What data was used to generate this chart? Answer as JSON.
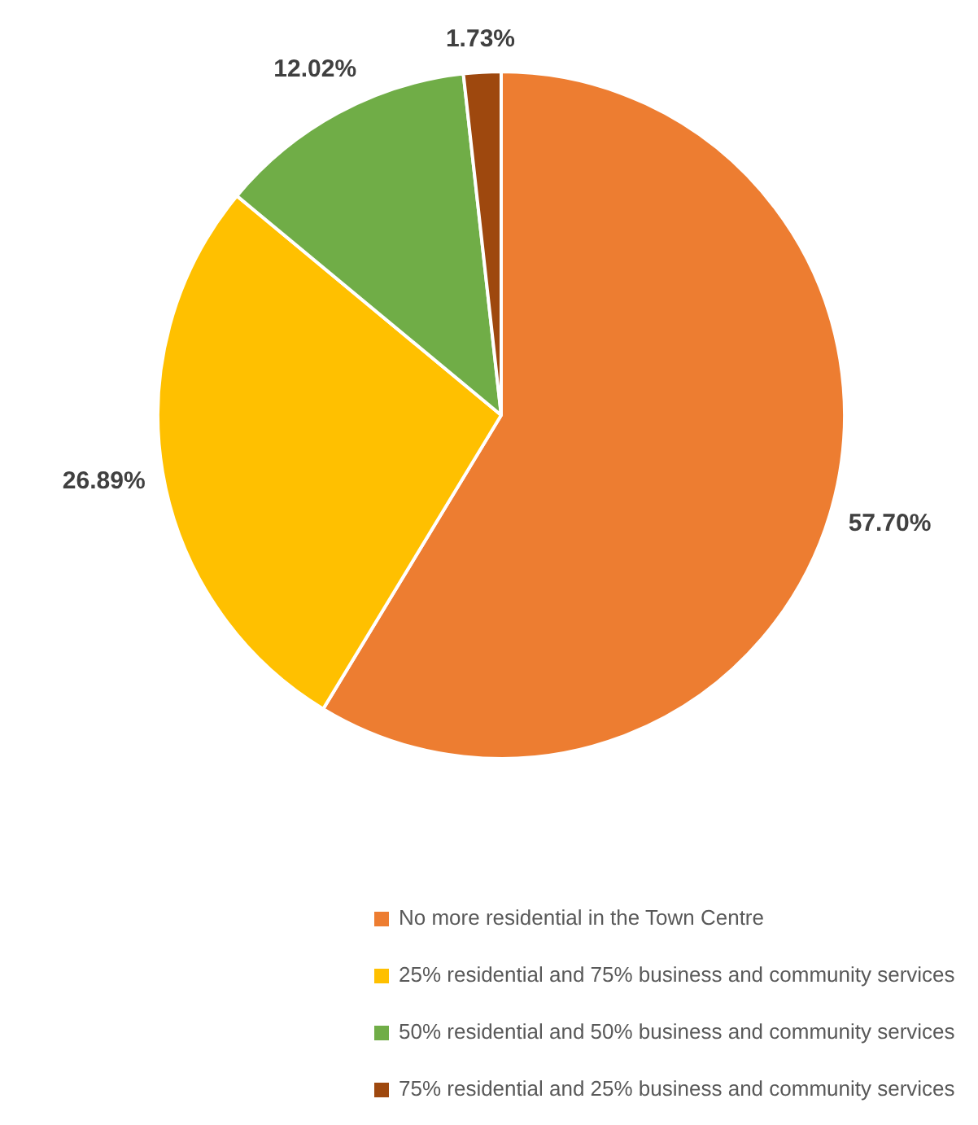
{
  "chart_data": {
    "type": "pie",
    "categories": [
      "No more residential in the Town Centre",
      "25% residential and 75% business and community services",
      "50% residential and 50% business and community services",
      "75% residential and 25% business and community services"
    ],
    "values": [
      57.7,
      26.89,
      12.02,
      1.73
    ],
    "value_labels": [
      "57.70%",
      "26.89%",
      "12.02%",
      "1.73%"
    ],
    "colors": [
      "#ed7d31",
      "#ffc000",
      "#70ad47",
      "#9e480e"
    ],
    "legend": "bottom"
  }
}
